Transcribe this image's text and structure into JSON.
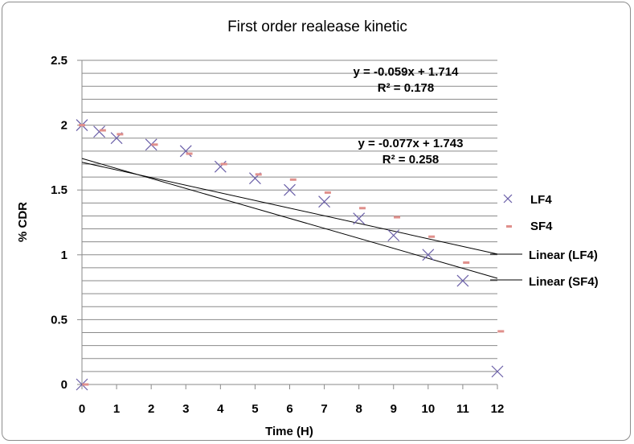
{
  "chart_data": {
    "type": "scatter",
    "title": "First order realease kinetic",
    "xlabel": "Time (H)",
    "ylabel": "% CDR",
    "xlim": [
      0,
      12
    ],
    "ylim": [
      0,
      2.5
    ],
    "x_ticks": [
      "0",
      "1",
      "2",
      "3",
      "4",
      "5",
      "6",
      "7",
      "8",
      "9",
      "10",
      "11",
      "12"
    ],
    "y_ticks": [
      "0",
      "0.5",
      "1",
      "1.5",
      "2",
      "2.5"
    ],
    "grid": "horizontal",
    "legend_position": "right",
    "series": [
      {
        "name": "LF4",
        "marker": "x",
        "color": "#6a5fa8",
        "points": [
          {
            "x": 0,
            "y": 2.0
          },
          {
            "x": 0.5,
            "y": 1.95
          },
          {
            "x": 1,
            "y": 1.9
          },
          {
            "x": 2,
            "y": 1.85
          },
          {
            "x": 3,
            "y": 1.8
          },
          {
            "x": 4,
            "y": 1.68
          },
          {
            "x": 5,
            "y": 1.59
          },
          {
            "x": 6,
            "y": 1.5
          },
          {
            "x": 7,
            "y": 1.41
          },
          {
            "x": 8,
            "y": 1.28
          },
          {
            "x": 9,
            "y": 1.15
          },
          {
            "x": 10,
            "y": 1.0
          },
          {
            "x": 11,
            "y": 0.8
          },
          {
            "x": 12,
            "y": 0.1
          },
          {
            "x": 0,
            "y": 0.0
          }
        ]
      },
      {
        "name": "SF4",
        "marker": "dash",
        "color": "#e0908c",
        "points": [
          {
            "x": 0,
            "y": 2.0
          },
          {
            "x": 0.6,
            "y": 1.96
          },
          {
            "x": 1.1,
            "y": 1.93
          },
          {
            "x": 2.1,
            "y": 1.85
          },
          {
            "x": 3.1,
            "y": 1.78
          },
          {
            "x": 4.1,
            "y": 1.7
          },
          {
            "x": 5.1,
            "y": 1.62
          },
          {
            "x": 6.1,
            "y": 1.58
          },
          {
            "x": 7.1,
            "y": 1.48
          },
          {
            "x": 8.1,
            "y": 1.36
          },
          {
            "x": 9.1,
            "y": 1.29
          },
          {
            "x": 10.1,
            "y": 1.14
          },
          {
            "x": 11.1,
            "y": 0.94
          },
          {
            "x": 12.1,
            "y": 0.41
          },
          {
            "x": 0.1,
            "y": 0.0
          }
        ]
      }
    ],
    "trendlines": [
      {
        "name": "Linear (LF4)",
        "slope": -0.059,
        "intercept": 1.714,
        "equation": "y = -0.059x + 1.714",
        "r2": "R² = 0.178"
      },
      {
        "name": "Linear (SF4)",
        "slope": -0.077,
        "intercept": 1.743,
        "equation": "y = -0.077x + 1.743",
        "r2": "R² = 0.258"
      }
    ]
  }
}
